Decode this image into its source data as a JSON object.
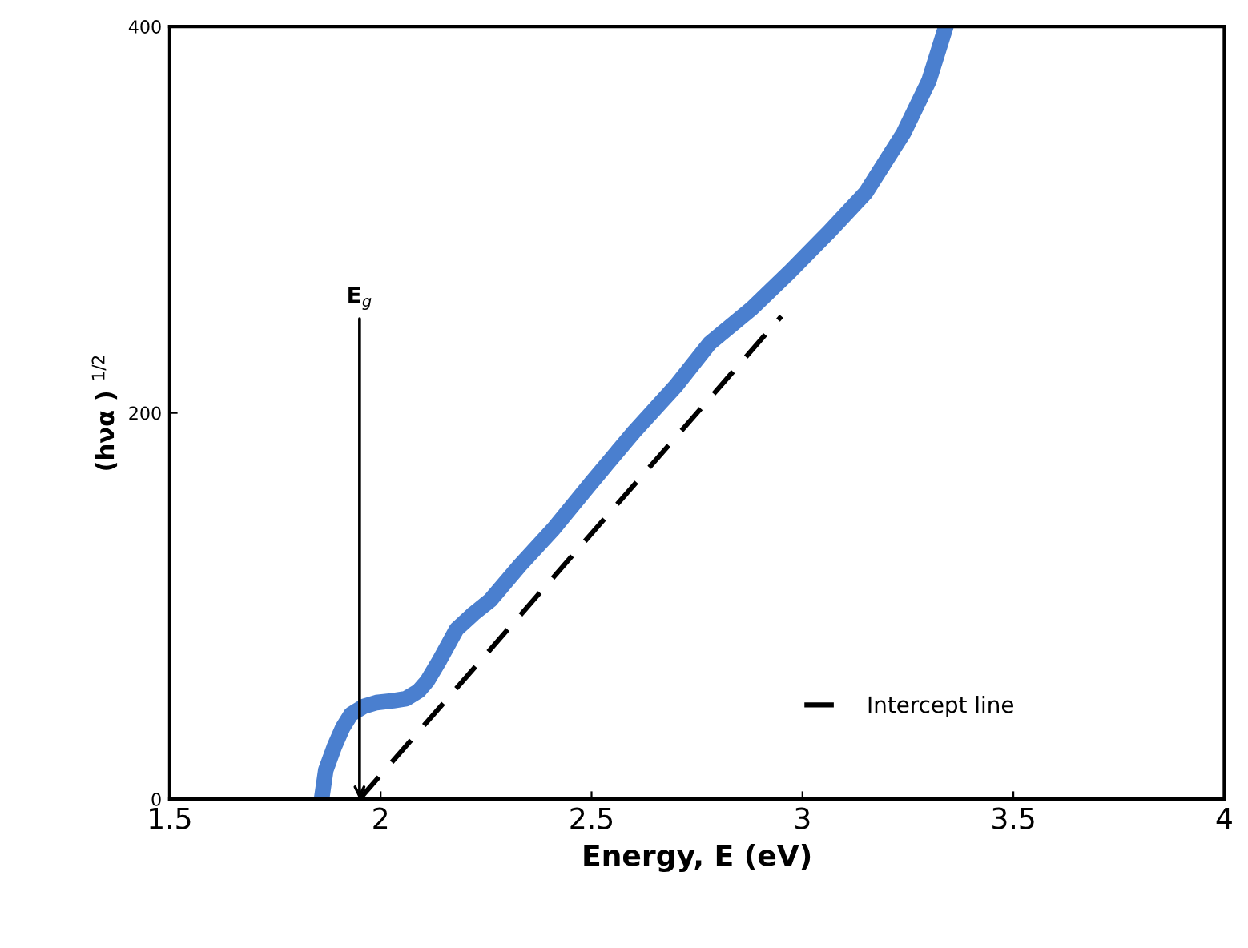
{
  "chart_data": {
    "type": "line",
    "xlabel": "Energy, E (eV)",
    "ylabel": "(hνα ) $^{1/2}$",
    "xlim": [
      1.5,
      4
    ],
    "xticks": [
      1.5,
      2,
      2.5,
      3,
      3.5,
      4
    ],
    "ylim": [
      0,
      400
    ],
    "yticks": [
      0,
      200,
      400
    ],
    "grid": false,
    "legend": "bottom right",
    "series": [
      {
        "color": "#4a7fcf",
        "x": [
          1.86,
          1.87,
          1.89,
          1.91,
          1.93,
          1.96,
          1.99,
          2.03,
          2.06,
          2.09,
          2.11,
          2.14,
          2.18,
          2.22,
          2.26,
          2.33,
          2.41,
          2.5,
          2.6,
          2.7,
          2.78,
          2.88,
          2.97,
          3.06,
          3.15,
          3.24,
          3.3,
          3.34
        ],
        "values": [
          0,
          15,
          27,
          37,
          44,
          48,
          50,
          51,
          52,
          56,
          61,
          72,
          88,
          96,
          103,
          121,
          140,
          164,
          190,
          214,
          236,
          254,
          273,
          293,
          314,
          345,
          372,
          400
        ],
        "line_style": "solid"
      },
      {
        "name": "Intercept line",
        "color": "#000000",
        "x": [
          1.95,
          2.95
        ],
        "values": [
          0,
          250
        ],
        "line_style": "dashed"
      }
    ],
    "annotations": [
      {
        "text": "E$_{g}$",
        "x": 1.95,
        "y": 0
      }
    ]
  }
}
